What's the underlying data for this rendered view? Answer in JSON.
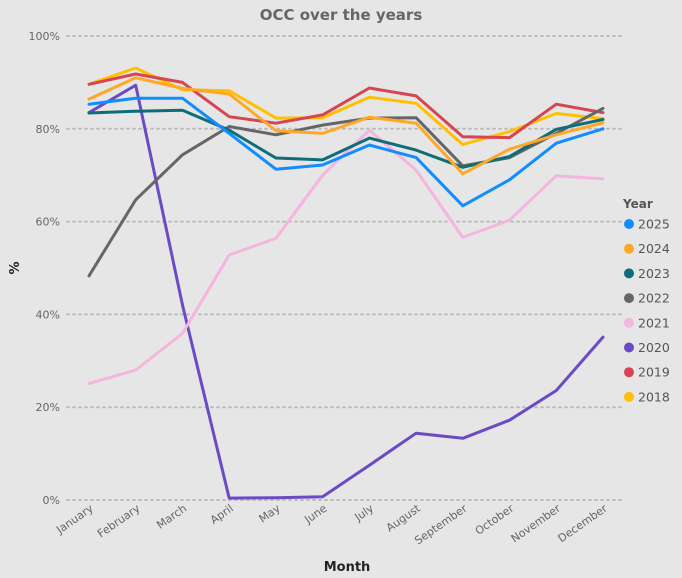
{
  "chart_data": {
    "type": "line",
    "title": "OCC over the years",
    "xlabel": "Month",
    "ylabel": "%",
    "ylim": [
      0,
      100
    ],
    "yticks": [
      "0%",
      "20%",
      "40%",
      "60%",
      "80%",
      "100%"
    ],
    "ytick_values": [
      0,
      20,
      40,
      60,
      80,
      100
    ],
    "grid": true,
    "legend_title": "Year",
    "legend_position": "right",
    "categories": [
      "January",
      "February",
      "March",
      "April",
      "May",
      "June",
      "July",
      "August",
      "September",
      "October",
      "November",
      "December"
    ],
    "series": [
      {
        "name": "2025",
        "color": "#118dff",
        "values": [
          85.3,
          86.6,
          86.6,
          79.0,
          71.3,
          72.2,
          76.5,
          73.8,
          63.4,
          69.0,
          76.9,
          80.0
        ]
      },
      {
        "name": "2024",
        "color": "#ffa726",
        "values": [
          86.4,
          91.0,
          88.7,
          87.5,
          79.6,
          79.0,
          82.5,
          81.2,
          70.3,
          75.6,
          78.7,
          81.3
        ]
      },
      {
        "name": "2023",
        "color": "#0e6e78",
        "values": [
          83.4,
          83.8,
          84.0,
          79.7,
          73.7,
          73.3,
          78.0,
          75.4,
          71.7,
          74.0,
          79.9,
          82.0
        ]
      },
      {
        "name": "2022",
        "color": "#666666",
        "values": [
          48.3,
          64.7,
          74.4,
          80.5,
          78.7,
          80.8,
          82.3,
          82.4,
          72.0,
          73.8,
          79.0,
          84.4
        ]
      },
      {
        "name": "2021",
        "color": "#f5b5de",
        "values": [
          25.1,
          28.0,
          35.9,
          52.8,
          56.4,
          70.0,
          79.7,
          71.1,
          56.6,
          60.3,
          69.9,
          69.2
        ]
      },
      {
        "name": "2020",
        "color": "#6b4bc4",
        "values": [
          83.5,
          89.4,
          42.0,
          0.4,
          0.5,
          0.7,
          7.5,
          14.4,
          13.3,
          17.2,
          23.6,
          35.1
        ]
      },
      {
        "name": "2019",
        "color": "#d64550",
        "values": [
          89.6,
          91.8,
          90.0,
          82.6,
          81.2,
          83.0,
          88.8,
          87.1,
          78.3,
          78.1,
          85.3,
          83.5
        ]
      },
      {
        "name": "2018",
        "color": "#ffc000",
        "values": [
          89.6,
          93.1,
          88.4,
          88.2,
          82.3,
          82.4,
          86.8,
          85.5,
          76.6,
          79.4,
          83.3,
          82.2
        ]
      }
    ]
  }
}
